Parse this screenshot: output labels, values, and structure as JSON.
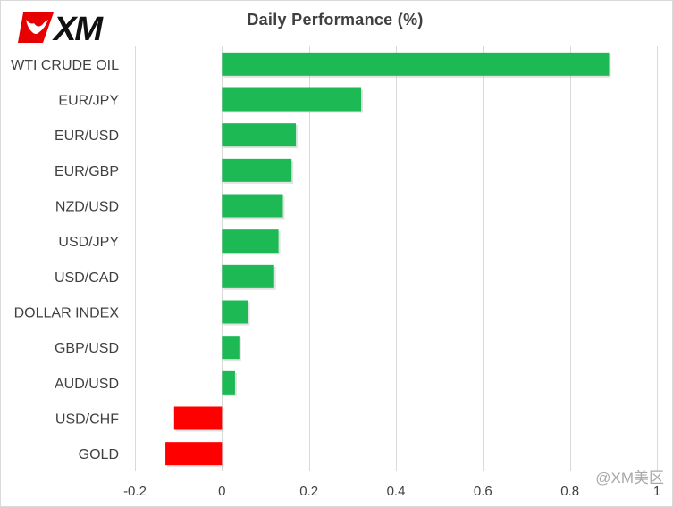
{
  "brand": {
    "logo_text": "XM",
    "logo_color": "#e60000"
  },
  "watermark": {
    "text": "@XM美区"
  },
  "chart_data": {
    "type": "bar",
    "orientation": "horizontal",
    "title": "Daily Performance (%)",
    "xlabel": "",
    "ylabel": "",
    "xlim": [
      -0.2,
      1
    ],
    "x_ticks": [
      -0.2,
      0,
      0.2,
      0.4,
      0.6,
      0.8,
      1
    ],
    "x_tick_labels": [
      "-0.2",
      "0",
      "0.2",
      "0.4",
      "0.6",
      "0.8",
      "1"
    ],
    "grid": "vertical",
    "legend": "none",
    "positive_color": "#1db954",
    "negative_color": "#ff0000",
    "categories": [
      "WTI CRUDE OIL",
      "EUR/JPY",
      "EUR/USD",
      "EUR/GBP",
      "NZD/USD",
      "USD/JPY",
      "USD/CAD",
      "DOLLAR INDEX",
      "GBP/USD",
      "AUD/USD",
      "USD/CHF",
      "GOLD"
    ],
    "values": [
      0.89,
      0.32,
      0.17,
      0.16,
      0.14,
      0.13,
      0.12,
      0.06,
      0.04,
      0.03,
      -0.11,
      -0.13
    ]
  }
}
